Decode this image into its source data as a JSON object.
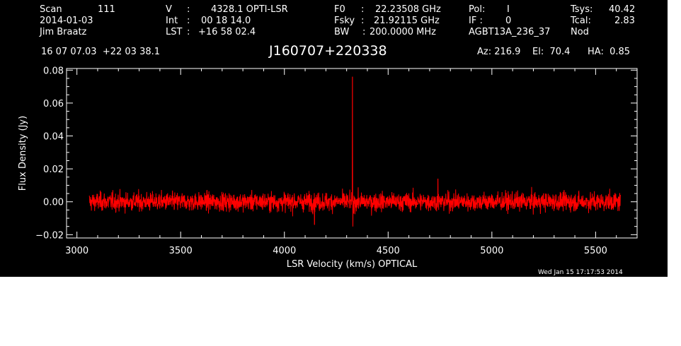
{
  "header": {
    "scan_label": "Scan",
    "scan_value": "111",
    "date": "2014-01-03",
    "observer": "Jim Braatz",
    "v_label": "V",
    "v_value": "4328.1 OPTI-LSR",
    "int_label": "Int",
    "int_value": "00 18 14.0",
    "lst_label": "LST",
    "lst_value": "+16 58 02.4",
    "f0_label": "F0",
    "f0_value": "22.23508 GHz",
    "fsky_label": "Fsky",
    "fsky_value": "21.92115 GHz",
    "bw_label": "BW",
    "bw_value": "200.0000 MHz",
    "pol_label": "Pol:",
    "pol_value": "I",
    "if_label": "IF :",
    "if_value": "0",
    "project": "AGBT13A_236_37",
    "tsys_label": "Tsys:",
    "tsys_value": "40.42",
    "tcal_label": "Tcal:",
    "tcal_value": "2.83",
    "mode": "Nod",
    "coords": "16 07 07.03  +22 03 38.1",
    "source": "J160707+220338",
    "az": "Az: 216.9",
    "el": "El:  70.4",
    "ha": "HA:  0.85",
    "timestamp": "Wed Jan 15 17:17:53 2014"
  },
  "chart_data": {
    "type": "line",
    "xlabel": "LSR Velocity (km/s) OPTICAL",
    "ylabel": "Flux Density (Jy)",
    "xlim": [
      2950,
      5700
    ],
    "ylim": [
      -0.022,
      0.081
    ],
    "x_ticks": [
      3000,
      3500,
      4000,
      4500,
      5000,
      5500
    ],
    "x_tick_labels": [
      "3000",
      "3500",
      "4000",
      "4500",
      "5000",
      "5500"
    ],
    "y_ticks": [
      -0.02,
      0.0,
      0.02,
      0.04,
      0.06,
      0.08
    ],
    "y_tick_labels": [
      "−0.02",
      "0.00",
      "0.02",
      "0.04",
      "0.06",
      "0.08"
    ],
    "grid": false,
    "line_color": "#ff0000",
    "series": [
      {
        "x_range": [
          3060,
          5620
        ],
        "baseline": 0.0,
        "noise_rms": 0.004,
        "points": [
          {
            "x": 4328,
            "y": 0.076
          },
          {
            "x": 4145,
            "y": -0.014
          },
          {
            "x": 4330,
            "y": -0.015
          },
          {
            "x": 4740,
            "y": 0.014
          }
        ]
      }
    ]
  }
}
